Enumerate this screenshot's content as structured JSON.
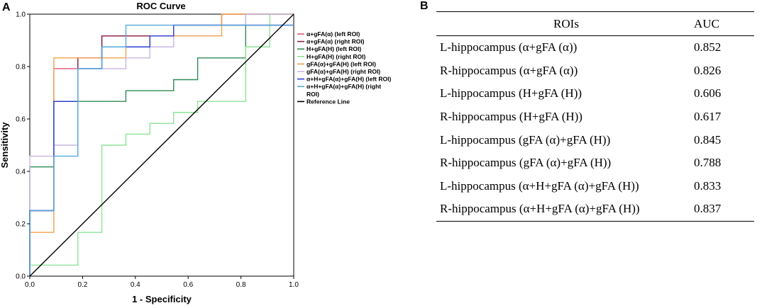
{
  "panel_a_label": "A",
  "panel_b_label": "B",
  "chart_data": {
    "type": "line",
    "title": "ROC Curve",
    "xlabel": "1 - Specificity",
    "ylabel": "Sensitivity",
    "xlim": [
      0,
      1
    ],
    "ylim": [
      0,
      1
    ],
    "xticks": [
      "0.0",
      "0.2",
      "0.4",
      "0.6",
      "0.8",
      "1.0"
    ],
    "yticks": [
      "0.0",
      "0.2",
      "0.4",
      "0.6",
      "0.8",
      "1.0"
    ],
    "grid": false,
    "legend_position": "right",
    "series": [
      {
        "name": "α+gFA(α) (left ROI)",
        "color": "#e05573",
        "points": [
          [
            0,
            0
          ],
          [
            0,
            0.25
          ],
          [
            0.091,
            0.25
          ],
          [
            0.091,
            0.792
          ],
          [
            0.182,
            0.792
          ],
          [
            0.182,
            0.833
          ],
          [
            0.273,
            0.833
          ],
          [
            0.273,
            0.917
          ],
          [
            0.545,
            0.917
          ],
          [
            0.545,
            0.958
          ],
          [
            0.727,
            0.958
          ],
          [
            0.727,
            1
          ],
          [
            1,
            1
          ]
        ]
      },
      {
        "name": "α+gFA(α) (right ROI)",
        "color": "#8b1f4a",
        "points": [
          [
            0,
            0
          ],
          [
            0,
            0.25
          ],
          [
            0.091,
            0.25
          ],
          [
            0.091,
            0.667
          ],
          [
            0.182,
            0.667
          ],
          [
            0.182,
            0.833
          ],
          [
            0.273,
            0.833
          ],
          [
            0.273,
            0.917
          ],
          [
            0.545,
            0.917
          ],
          [
            0.545,
            0.958
          ],
          [
            1,
            0.958
          ]
        ]
      },
      {
        "name": "H+gFA(H) (left ROI)",
        "color": "#2e8b57",
        "points": [
          [
            0,
            0
          ],
          [
            0,
            0.417
          ],
          [
            0.091,
            0.417
          ],
          [
            0.091,
            0.667
          ],
          [
            0.273,
            0.667
          ],
          [
            0.273,
            0.667
          ],
          [
            0.364,
            0.667
          ],
          [
            0.364,
            0.708
          ],
          [
            0.545,
            0.708
          ],
          [
            0.545,
            0.75
          ],
          [
            0.636,
            0.75
          ],
          [
            0.636,
            0.833
          ],
          [
            0.818,
            0.833
          ],
          [
            0.818,
            1
          ],
          [
            1,
            1
          ]
        ]
      },
      {
        "name": "H+gFA(H) (right ROI)",
        "color": "#8fe39a",
        "points": [
          [
            0,
            0.042
          ],
          [
            0.182,
            0.042
          ],
          [
            0.182,
            0.167
          ],
          [
            0.273,
            0.167
          ],
          [
            0.273,
            0.5
          ],
          [
            0.364,
            0.5
          ],
          [
            0.364,
            0.542
          ],
          [
            0.455,
            0.542
          ],
          [
            0.455,
            0.583
          ],
          [
            0.545,
            0.583
          ],
          [
            0.545,
            0.625
          ],
          [
            0.636,
            0.625
          ],
          [
            0.636,
            0.667
          ],
          [
            0.818,
            0.667
          ],
          [
            0.818,
            0.875
          ],
          [
            0.909,
            0.875
          ],
          [
            0.909,
            1
          ],
          [
            1,
            1
          ]
        ]
      },
      {
        "name": "gFA(α)+gFA(H) (left ROI)",
        "color": "#f0a04b",
        "points": [
          [
            0,
            0
          ],
          [
            0,
            0.167
          ],
          [
            0.091,
            0.167
          ],
          [
            0.091,
            0.833
          ],
          [
            0.364,
            0.833
          ],
          [
            0.364,
            0.875
          ],
          [
            0.455,
            0.875
          ],
          [
            0.455,
            0.917
          ],
          [
            0.727,
            0.917
          ],
          [
            0.727,
            1
          ],
          [
            1,
            1
          ]
        ]
      },
      {
        "name": "gFA(α)+gFA(H) (right ROI)",
        "color": "#c8b6e2",
        "points": [
          [
            0,
            0
          ],
          [
            0,
            0.458
          ],
          [
            0.091,
            0.458
          ],
          [
            0.091,
            0.5
          ],
          [
            0.182,
            0.5
          ],
          [
            0.182,
            0.792
          ],
          [
            0.364,
            0.792
          ],
          [
            0.364,
            0.833
          ],
          [
            0.455,
            0.833
          ],
          [
            0.455,
            0.875
          ],
          [
            0.545,
            0.875
          ],
          [
            0.545,
            0.958
          ],
          [
            0.818,
            0.958
          ],
          [
            0.818,
            1
          ],
          [
            1,
            1
          ]
        ]
      },
      {
        "name": "α+H+gFA(α)+gFA(H) (left ROI)",
        "color": "#2b3fd6",
        "points": [
          [
            0,
            0
          ],
          [
            0,
            0.25
          ],
          [
            0.091,
            0.25
          ],
          [
            0.091,
            0.667
          ],
          [
            0.182,
            0.667
          ],
          [
            0.182,
            0.792
          ],
          [
            0.273,
            0.792
          ],
          [
            0.273,
            0.875
          ],
          [
            0.455,
            0.875
          ],
          [
            0.455,
            0.917
          ],
          [
            0.545,
            0.917
          ],
          [
            0.545,
            0.958
          ],
          [
            1,
            0.958
          ]
        ]
      },
      {
        "name": "α+H+gFA(α)+gFA(H) (right ROI)",
        "color": "#52a9dd",
        "points": [
          [
            0,
            0
          ],
          [
            0,
            0.25
          ],
          [
            0.091,
            0.25
          ],
          [
            0.091,
            0.458
          ],
          [
            0.182,
            0.458
          ],
          [
            0.182,
            0.792
          ],
          [
            0.273,
            0.792
          ],
          [
            0.273,
            0.875
          ],
          [
            0.364,
            0.875
          ],
          [
            0.364,
            0.958
          ],
          [
            1,
            0.958
          ]
        ]
      },
      {
        "name": "Reference Line",
        "color": "#000000",
        "points": [
          [
            0,
            0
          ],
          [
            1,
            1
          ]
        ]
      }
    ]
  },
  "table": {
    "headers": [
      "ROIs",
      "AUC"
    ],
    "rows": [
      {
        "roi": "L-hippocampus (α+gFA (α))",
        "auc": "0.852"
      },
      {
        "roi": "R-hippocampus (α+gFA (α))",
        "auc": "0.826"
      },
      {
        "roi": "L-hippocampus (H+gFA (H))",
        "auc": "0.606"
      },
      {
        "roi": "R-hippocampus (H+gFA (H))",
        "auc": "0.617"
      },
      {
        "roi": "L-hippocampus (gFA (α)+gFA (H))",
        "auc": "0.845"
      },
      {
        "roi": "R-hippocampus (gFA (α)+gFA (H))",
        "auc": "0.788"
      },
      {
        "roi": "L-hippocampus (α+H+gFA (α)+gFA (H))",
        "auc": "0.833"
      },
      {
        "roi": "R-hippocampus (α+H+gFA (α)+gFA (H))",
        "auc": "0.837"
      }
    ]
  }
}
